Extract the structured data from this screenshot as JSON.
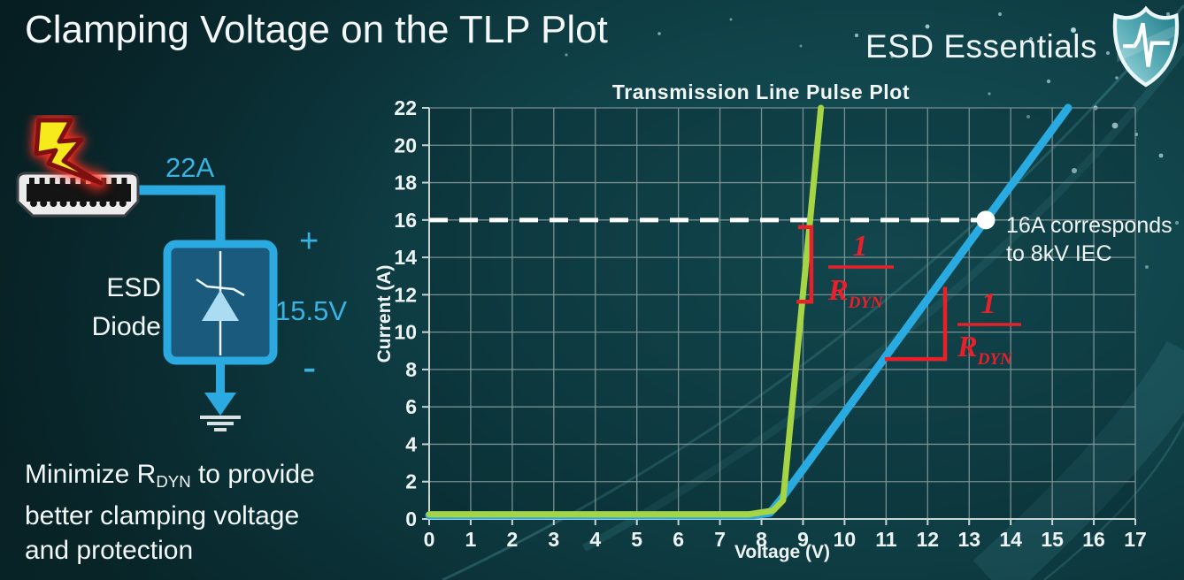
{
  "header": {
    "title": "Clamping Voltage on the TLP Plot",
    "brand": "ESD Essentials"
  },
  "diagram": {
    "surge_current": "22A",
    "device_name_line1": "ESD",
    "device_name_line2": "Diode",
    "polarity_plus": "+",
    "polarity_minus": "-",
    "clamping_voltage": "15.5V"
  },
  "note": {
    "line1_pre": "Minimize R",
    "line1_sub": "DYN",
    "line1_post": " to provide",
    "line2": "better clamping voltage",
    "line3": "and protection"
  },
  "palette": {
    "cyan_accent": "#2aaae1",
    "green_curve": "#a5d544",
    "blue_curve": "#29abe2",
    "red_annotation": "#e8202a",
    "background": "#0d383d",
    "grid": "#7e9496",
    "reference_white": "#ffffff"
  },
  "chart_data": {
    "type": "line",
    "title": "Transmission Line Pulse Plot",
    "xlabel": "Voltage (V)",
    "ylabel": "Current (A)",
    "xlim": [
      0,
      17
    ],
    "ylim": [
      0,
      22
    ],
    "xticks": [
      0,
      1,
      2,
      3,
      4,
      5,
      6,
      7,
      8,
      9,
      10,
      11,
      12,
      13,
      14,
      15,
      16,
      17
    ],
    "yticks": [
      0,
      2,
      4,
      6,
      8,
      10,
      12,
      14,
      16,
      18,
      20,
      22
    ],
    "grid": true,
    "legend": false,
    "series": [
      {
        "name": "green-steep-iv-curve",
        "color": "#a5d544",
        "stroke_width": 7,
        "points": [
          [
            0,
            0.25
          ],
          [
            7.7,
            0.25
          ],
          [
            8.28,
            0.45
          ],
          [
            8.52,
            1.0
          ],
          [
            8.65,
            4.0
          ],
          [
            9.17,
            16.0
          ],
          [
            9.43,
            22.0
          ]
        ]
      },
      {
        "name": "blue-shallow-iv-curve",
        "color": "#29abe2",
        "stroke_width": 9,
        "points": [
          [
            0,
            0.2
          ],
          [
            7.8,
            0.2
          ],
          [
            8.2,
            0.32
          ],
          [
            8.45,
            1.0
          ],
          [
            13.4,
            16.0
          ],
          [
            15.38,
            22.0
          ]
        ]
      }
    ],
    "reference_line": {
      "y": 16,
      "end_x": 13.4,
      "color": "#ffffff",
      "style": "dashed"
    },
    "marker": {
      "x": 13.4,
      "y": 16,
      "color": "#ffffff",
      "label_line1": "16A corresponds",
      "label_line2": "to 8kV IEC"
    },
    "slope_annotations": [
      {
        "label_numerator": "1",
        "label_denominator": "R",
        "label_denominator_sub": "DYN",
        "color": "#e8202a",
        "bracket": [
          [
            8.88,
            15.62
          ],
          [
            9.2,
            15.62
          ],
          [
            9.2,
            11.63
          ],
          [
            8.84,
            11.63
          ]
        ]
      },
      {
        "label_numerator": "1",
        "label_denominator": "R",
        "label_denominator_sub": "DYN",
        "color": "#e8202a",
        "bracket": [
          [
            10.97,
            8.56
          ],
          [
            12.42,
            8.56
          ],
          [
            12.42,
            12.42
          ]
        ]
      }
    ]
  }
}
